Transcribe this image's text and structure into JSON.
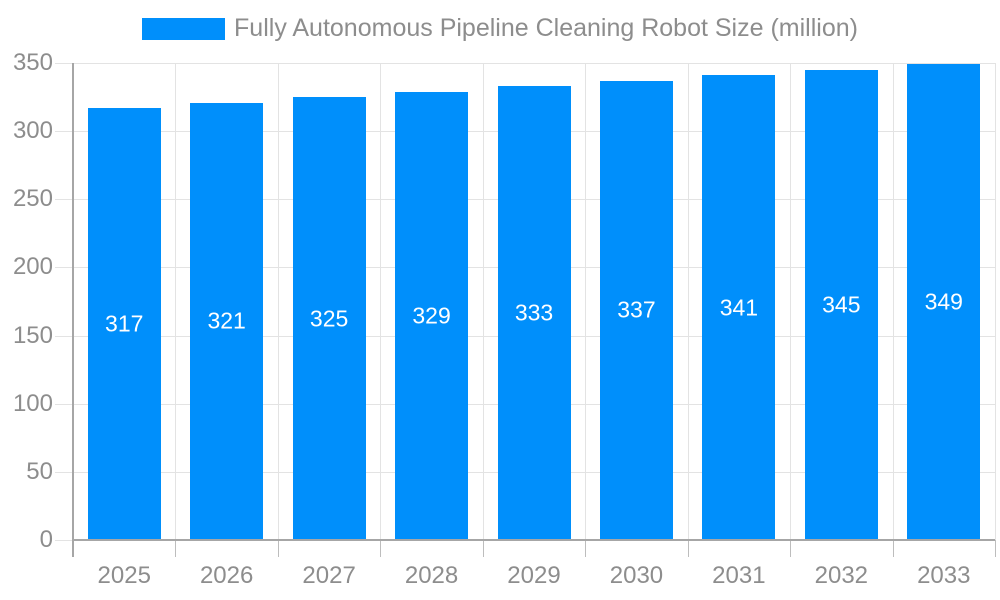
{
  "chart_data": {
    "type": "bar",
    "title": "Fully Autonomous Pipeline Cleaning Robot Size (million)",
    "legend": {
      "position": "top",
      "label": "Fully Autonomous Pipeline Cleaning Robot Size (million)"
    },
    "categories": [
      "2025",
      "2026",
      "2027",
      "2028",
      "2029",
      "2030",
      "2031",
      "2032",
      "2033"
    ],
    "values": [
      317,
      321,
      325,
      329,
      333,
      337,
      341,
      345,
      349
    ],
    "xlabel": "",
    "ylabel": "",
    "ylim": [
      0,
      350
    ],
    "ytick_step": 50,
    "yticks": [
      0,
      50,
      100,
      150,
      200,
      250,
      300,
      350
    ],
    "grid": true,
    "bar_label_position": "middle",
    "colors": {
      "bar": "#008ffb",
      "grid": "#e3e3e3",
      "axis": "#a6a6a6",
      "tick": "#bdbdbd",
      "label": "#8d8d8d",
      "value_label": "#ffffff"
    }
  }
}
